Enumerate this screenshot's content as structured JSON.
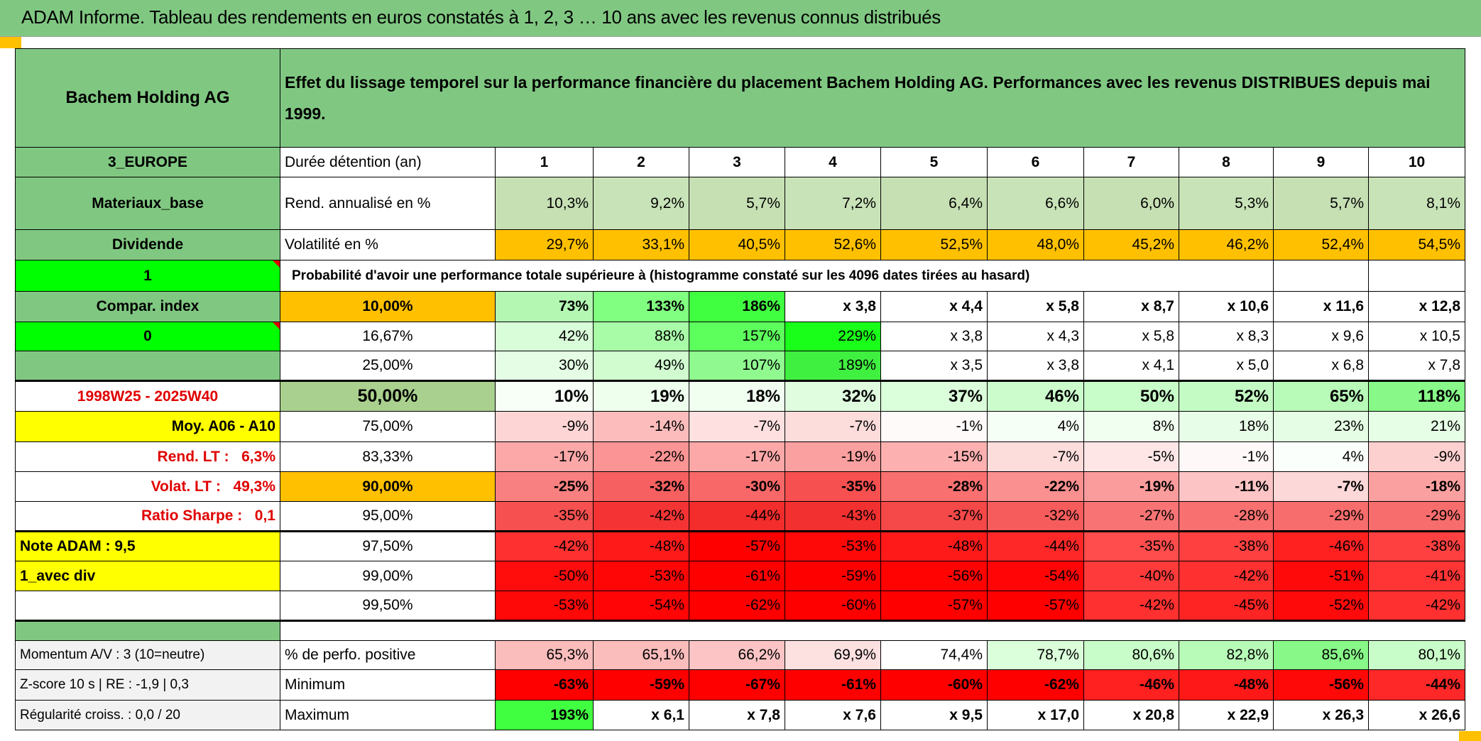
{
  "title": "ADAM Informe. Tableau des rendements en euros constatés à 1, 2, 3 … 10 ans avec les revenus connus distribués",
  "header": {
    "company": "Bachem Holding AG",
    "description": "Effet du lissage temporel sur la performance financière du placement Bachem Holding AG. Performances avec les revenus DISTRIBUES depuis mai 1999."
  },
  "duration": {
    "region": "3_EUROPE",
    "label": "Durée détention (an)",
    "years": [
      "1",
      "2",
      "3",
      "4",
      "5",
      "6",
      "7",
      "8",
      "9",
      "10"
    ]
  },
  "returns": {
    "sector": "Materiaux_base",
    "label": "Rend. annualisé en %",
    "values": [
      "10,3%",
      "9,2%",
      "5,7%",
      "7,2%",
      "6,4%",
      "6,6%",
      "6,0%",
      "5,3%",
      "5,7%",
      "8,1%"
    ]
  },
  "volatility": {
    "type": "Dividende",
    "label": "Volatilité en %",
    "values": [
      "29,7%",
      "33,1%",
      "40,5%",
      "52,6%",
      "52,5%",
      "48,0%",
      "45,2%",
      "46,2%",
      "52,4%",
      "54,5%"
    ]
  },
  "probability": {
    "flag": "1",
    "title": "Probabilité d'avoir une performance totale supérieure à (histogramme constaté sur les 4096 dates tirées au hasard)"
  },
  "percentile_rows": [
    {
      "side": "Compar. index",
      "threshold": "10,00%",
      "values": [
        "73%",
        "133%",
        "186%",
        "x 3,8",
        "x 4,4",
        "x 5,8",
        "x 8,7",
        "x 10,6",
        "x 11,6",
        "x 12,8"
      ],
      "colors": [
        "#b3f7b3",
        "#80ff80",
        "#40ff40",
        "#ffffff",
        "#ffffff",
        "#ffffff",
        "#ffffff",
        "#ffffff",
        "#ffffff",
        "#ffffff"
      ]
    },
    {
      "side": "0",
      "threshold": "16,67%",
      "values": [
        "42%",
        "88%",
        "157%",
        "229%",
        "x 3,8",
        "x 4,3",
        "x 5,8",
        "x 8,3",
        "x 9,6",
        "x 10,5"
      ],
      "colors": [
        "#d9fdd9",
        "#a8fca8",
        "#5cff5c",
        "#1aff1a",
        "#ffffff",
        "#ffffff",
        "#ffffff",
        "#ffffff",
        "#ffffff",
        "#ffffff"
      ]
    },
    {
      "side": "",
      "threshold": "25,00%",
      "values": [
        "30%",
        "49%",
        "107%",
        "189%",
        "x 3,5",
        "x 3,8",
        "x 4,1",
        "x 5,0",
        "x 6,8",
        "x 7,8"
      ],
      "colors": [
        "#e4fde4",
        "#d0fcd0",
        "#90fa90",
        "#40f040",
        "#ffffff",
        "#ffffff",
        "#ffffff",
        "#ffffff",
        "#ffffff",
        "#ffffff"
      ]
    },
    {
      "side": "1998W25 - 2025W40",
      "threshold": "50,00%",
      "values": [
        "10%",
        "19%",
        "18%",
        "32%",
        "37%",
        "46%",
        "50%",
        "52%",
        "65%",
        "118%"
      ],
      "colors": [
        "#f7fff7",
        "#eeffee",
        "#f0fff0",
        "#e0fde0",
        "#daffda",
        "#ccfccc",
        "#c8fcc8",
        "#c4fbc4",
        "#b8fab8",
        "#88f888"
      ]
    },
    {
      "side": "Moy. A06 - A10",
      "threshold": "75,00%",
      "values": [
        "-9%",
        "-14%",
        "-7%",
        "-7%",
        "-1%",
        "4%",
        "8%",
        "18%",
        "23%",
        "21%"
      ],
      "colors": [
        "#fdd5d5",
        "#fcbcbc",
        "#ffe0e0",
        "#fddcdc",
        "#fffafa",
        "#f6fff6",
        "#f0ffef",
        "#e8fde8",
        "#e4fde4",
        "#e6fde6"
      ]
    },
    {
      "side": "Rend. LT :   6,3%",
      "threshold": "83,33%",
      "values": [
        "-17%",
        "-22%",
        "-17%",
        "-19%",
        "-15%",
        "-7%",
        "-5%",
        "-1%",
        "4%",
        "-9%"
      ],
      "colors": [
        "#fca8a8",
        "#fb9494",
        "#fca8a8",
        "#fba0a0",
        "#fcb0b0",
        "#fddcdc",
        "#fee6e6",
        "#fff8f8",
        "#fbfffb",
        "#fdd0d0"
      ]
    },
    {
      "side": "Volat. LT :   49,3%",
      "threshold": "90,00%",
      "values": [
        "-25%",
        "-32%",
        "-30%",
        "-35%",
        "-28%",
        "-22%",
        "-19%",
        "-11%",
        "-7%",
        "-18%"
      ],
      "colors": [
        "#f98080",
        "#f76060",
        "#f86868",
        "#f65050",
        "#f87070",
        "#fa9090",
        "#fb9c9c",
        "#fcc4c4",
        "#fdd8d8",
        "#fba0a0"
      ]
    },
    {
      "side": "Ratio Sharpe :   0,1",
      "threshold": "95,00%",
      "values": [
        "-35%",
        "-42%",
        "-44%",
        "-43%",
        "-37%",
        "-32%",
        "-27%",
        "-28%",
        "-29%",
        "-29%"
      ],
      "colors": [
        "#f65050",
        "#f43434",
        "#f32c2c",
        "#f33030",
        "#f54848",
        "#f65c5c",
        "#f87474",
        "#f87070",
        "#f76c6c",
        "#f76c6c"
      ]
    },
    {
      "side": "Note ADAM : 9,5",
      "threshold": "97,50%",
      "values": [
        "-42%",
        "-48%",
        "-57%",
        "-53%",
        "-48%",
        "-44%",
        "-35%",
        "-38%",
        "-46%",
        "-38%"
      ],
      "colors": [
        "#ff3030",
        "#ff1a1a",
        "#ff0000",
        "#ff0808",
        "#ff1a1a",
        "#ff2828",
        "#ff4c4c",
        "#ff4040",
        "#ff2020",
        "#ff4040"
      ]
    },
    {
      "side": "1_avec div",
      "threshold": "99,00%",
      "values": [
        "-50%",
        "-53%",
        "-61%",
        "-59%",
        "-56%",
        "-54%",
        "-40%",
        "-42%",
        "-51%",
        "-41%"
      ],
      "colors": [
        "#ff0c0c",
        "#ff0606",
        "#ff0000",
        "#ff0000",
        "#ff0202",
        "#ff0505",
        "#ff3a3a",
        "#ff3030",
        "#ff0a0a",
        "#ff3434"
      ]
    },
    {
      "side": "",
      "threshold": "99,50%",
      "values": [
        "-53%",
        "-54%",
        "-62%",
        "-60%",
        "-57%",
        "-57%",
        "-42%",
        "-45%",
        "-52%",
        "-42%"
      ],
      "colors": [
        "#ff0808",
        "#ff0505",
        "#ff0000",
        "#ff0000",
        "#ff0000",
        "#ff0000",
        "#ff3030",
        "#ff2424",
        "#ff0a0a",
        "#ff3030"
      ]
    }
  ],
  "stats_rows": [
    {
      "side": "Momentum A/V : 3 (10=neutre)",
      "label": "% de perfo. positive",
      "values": [
        "65,3%",
        "65,1%",
        "66,2%",
        "69,9%",
        "74,4%",
        "78,7%",
        "80,6%",
        "82,8%",
        "85,6%",
        "80,1%"
      ],
      "colors": [
        "#fbbcbc",
        "#fbbcbc",
        "#fcc4c4",
        "#fde0e0",
        "#ffffff",
        "#daffda",
        "#c8fcc8",
        "#b8fab8",
        "#88f888",
        "#c8fcc8"
      ]
    },
    {
      "side": "Z-score 10 s | RE : -1,9 | 0,3",
      "label": "Minimum",
      "values": [
        "-63%",
        "-59%",
        "-67%",
        "-61%",
        "-60%",
        "-62%",
        "-46%",
        "-48%",
        "-56%",
        "-44%"
      ],
      "colors": [
        "#ff0000",
        "#ff0000",
        "#ff0000",
        "#ff0000",
        "#ff0000",
        "#ff0000",
        "#ff2020",
        "#ff1818",
        "#ff0808",
        "#ff2828"
      ]
    },
    {
      "side": "Régularité croiss. : 0,0 / 20",
      "label": "Maximum",
      "values": [
        "193%",
        "x 6,1",
        "x 7,8",
        "x 7,6",
        "x 9,5",
        "x 17,0",
        "x 20,8",
        "x 22,9",
        "x 26,3",
        "x 26,6"
      ],
      "colors": [
        "#40ff40",
        "#ffffff",
        "#ffffff",
        "#ffffff",
        "#ffffff",
        "#ffffff",
        "#ffffff",
        "#ffffff",
        "#ffffff",
        "#ffffff"
      ]
    }
  ],
  "colors": {
    "header_green": "#80c882",
    "returns_bg": "#c6e0b4",
    "volatility_bg": "#ffc000",
    "flag_green": "#00ff00",
    "highlight_yellow": "#ffff00",
    "label_red": "#e00000"
  }
}
